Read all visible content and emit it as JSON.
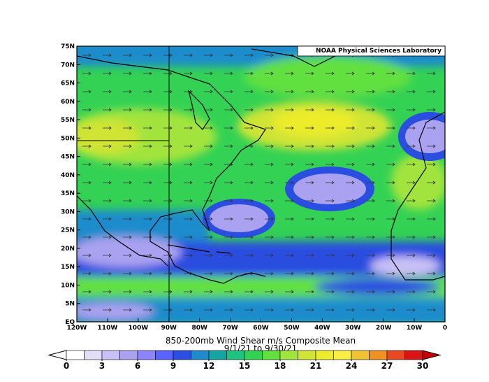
{
  "map": {
    "title": "850-200mb Wind Shear m/s Composite Mean",
    "subtitle": "9/1/21  to 9/30/21",
    "credit": "NOAA Physical Sciences Laboratory",
    "lon_labels": [
      "120W",
      "110W",
      "100W",
      "90W",
      "80W",
      "70W",
      "60W",
      "50W",
      "40W",
      "30W",
      "20W",
      "10W",
      "0"
    ],
    "lat_labels": [
      "75N",
      "70N",
      "65N",
      "60N",
      "55N",
      "50N",
      "45N",
      "40N",
      "35N",
      "30N",
      "25N",
      "20N",
      "15N",
      "10N",
      "5N",
      "EQ"
    ],
    "colorbar": {
      "ticks": [
        0,
        3,
        6,
        9,
        12,
        15,
        18,
        21,
        24,
        27,
        30
      ],
      "step": 1.5,
      "colors": [
        "#ffffff",
        "#e4ddf8",
        "#c8c0f6",
        "#aaa2f0",
        "#8c84f8",
        "#5a62ff",
        "#2a4ee0",
        "#1e8ccc",
        "#14a4a4",
        "#20c282",
        "#34d254",
        "#62e040",
        "#a2e43e",
        "#cfe434",
        "#ecec2a",
        "#f8ee44",
        "#f2c232",
        "#f09222",
        "#e84822",
        "#d81414"
      ],
      "under": "#ffffff",
      "over": "#c80000"
    }
  }
}
